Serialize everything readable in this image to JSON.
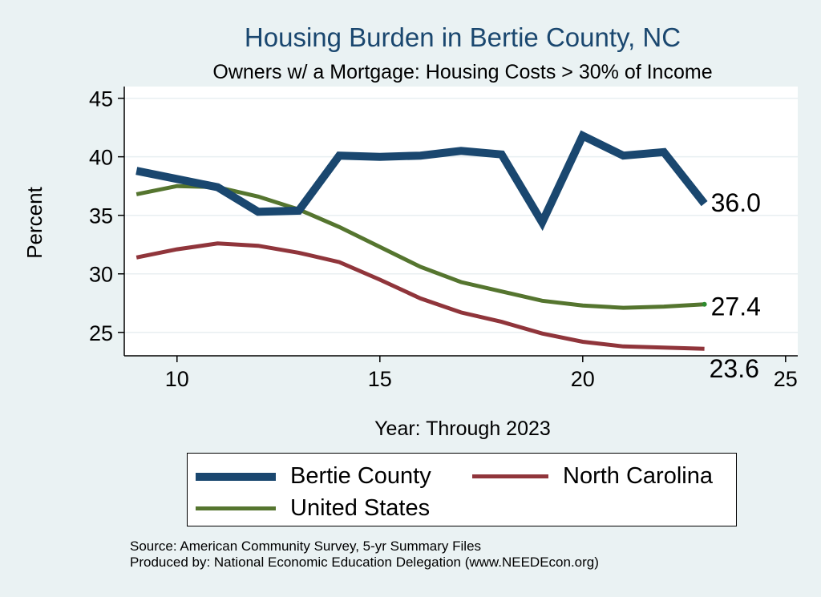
{
  "chart_data": {
    "type": "line",
    "title": "Housing Burden in Bertie County, NC",
    "subtitle": "Owners w/ a Mortgage: Housing Costs > 30% of Income",
    "xlabel": "Year: Through 2023",
    "ylabel": "Percent",
    "xlim": [
      8.7,
      25.3
    ],
    "ylim": [
      23,
      46
    ],
    "x_ticks": [
      10,
      15,
      20,
      25
    ],
    "y_ticks": [
      25,
      30,
      35,
      40,
      45
    ],
    "grid": true,
    "legend_position": "bottom",
    "x": [
      9,
      10,
      11,
      12,
      13,
      14,
      15,
      16,
      17,
      18,
      19,
      20,
      21,
      22,
      23
    ],
    "series": [
      {
        "name": "Bertie County",
        "color": "#1a476f",
        "end_label": "36.0",
        "values": [
          38.8,
          38.1,
          37.4,
          35.3,
          35.4,
          40.1,
          40.0,
          40.1,
          40.5,
          40.2,
          34.4,
          41.8,
          40.1,
          40.4,
          36.0
        ]
      },
      {
        "name": "North Carolina",
        "color": "#90353b",
        "end_label": "23.6",
        "values": [
          31.4,
          32.1,
          32.6,
          32.4,
          31.8,
          31.0,
          29.5,
          27.9,
          26.7,
          25.9,
          24.9,
          24.2,
          23.8,
          23.7,
          23.6
        ]
      },
      {
        "name": "United States",
        "color": "#55752f",
        "end_label": "27.4",
        "values": [
          36.8,
          37.5,
          37.4,
          36.6,
          35.5,
          34.0,
          32.3,
          30.6,
          29.3,
          28.5,
          27.7,
          27.3,
          27.1,
          27.2,
          27.4
        ]
      }
    ]
  },
  "notes": {
    "source": "Source: American Community Survey, 5-yr Summary Files",
    "produced": "Produced by: National Economic Education Delegation (www.NEEDEcon.org)"
  }
}
